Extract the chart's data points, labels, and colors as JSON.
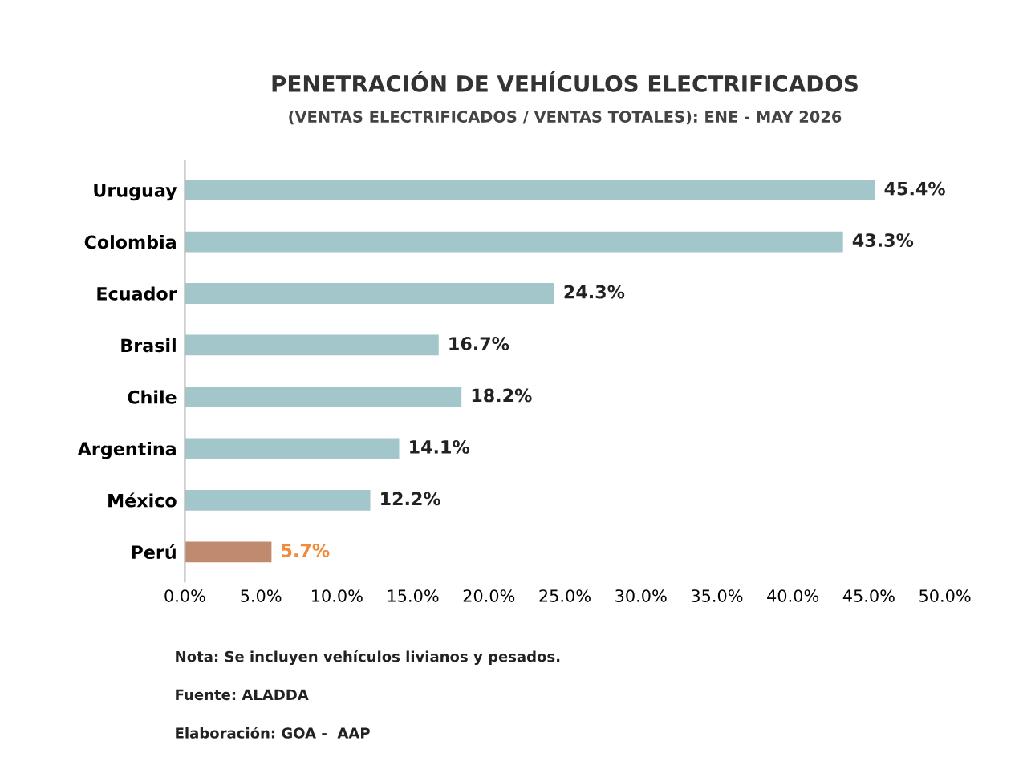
{
  "chart_data": {
    "type": "bar",
    "orientation": "horizontal",
    "title": "PENETRACIÓN DE VEHÍCULOS ELECTRIFICADOS",
    "subtitle": "(VENTAS ELECTRIFICADOS / VENTAS TOTALES): ENE - MAY 2026",
    "categories": [
      "Uruguay",
      "Colombia",
      "Ecuador",
      "Brasil",
      "Chile",
      "Argentina",
      "México",
      "Perú"
    ],
    "values": [
      45.4,
      43.3,
      24.3,
      16.7,
      18.2,
      14.1,
      12.2,
      5.7
    ],
    "value_labels": [
      "45.4%",
      "43.3%",
      "24.3%",
      "16.7%",
      "18.2%",
      "14.1%",
      "12.2%",
      "5.7%"
    ],
    "colors": [
      "#a3c6ca",
      "#a3c6ca",
      "#a3c6ca",
      "#a3c6ca",
      "#a3c6ca",
      "#a3c6ca",
      "#a3c6ca",
      "#c08a6e"
    ],
    "xlim": [
      0,
      50
    ],
    "xticks": [
      {
        "value": 0,
        "label": "0.0%"
      },
      {
        "value": 5,
        "label": "5.0%"
      },
      {
        "value": 10,
        "label": "10.0%"
      },
      {
        "value": 15,
        "label": "15.0%"
      },
      {
        "value": 20,
        "label": "20.0%"
      },
      {
        "value": 25,
        "label": "25.0%"
      },
      {
        "value": 30,
        "label": "30.0%"
      },
      {
        "value": 35,
        "label": "35.0%"
      },
      {
        "value": 40,
        "label": "40.0%"
      },
      {
        "value": 45,
        "label": "45.0%"
      },
      {
        "value": 50,
        "label": "50.0%"
      }
    ],
    "grid": false,
    "legend": false,
    "annotations": [
      "Nota: Se incluyen vehículos livianos y pesados.",
      "Fuente: ALADDA",
      "Elaboración: GOA -  AAP"
    ]
  }
}
